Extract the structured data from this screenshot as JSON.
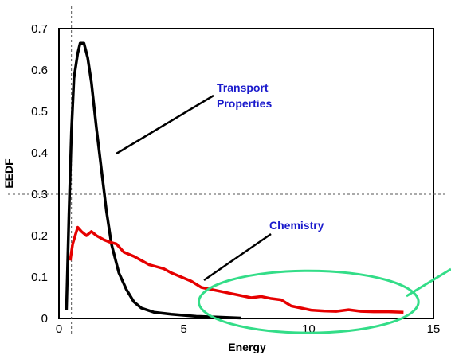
{
  "chart_data": {
    "type": "line",
    "xlabel": "Energy",
    "ylabel": "EEDF",
    "xlim": [
      0,
      15
    ],
    "ylim": [
      0,
      0.7
    ],
    "x_ticks": [
      "0",
      "5",
      "10",
      "15"
    ],
    "y_ticks": [
      "0",
      "0.1",
      "0.2",
      "0.3",
      "0.4",
      "0.5",
      "0.6",
      "0.7"
    ],
    "grid": false,
    "reference_lines": {
      "x": 0.5,
      "y": 0.3
    },
    "series": [
      {
        "color": "#000000",
        "points": [
          [
            0.3,
            0.02
          ],
          [
            0.4,
            0.25
          ],
          [
            0.5,
            0.45
          ],
          [
            0.6,
            0.58
          ],
          [
            0.75,
            0.64
          ],
          [
            0.85,
            0.665
          ],
          [
            1.0,
            0.665
          ],
          [
            1.15,
            0.63
          ],
          [
            1.3,
            0.57
          ],
          [
            1.5,
            0.46
          ],
          [
            1.7,
            0.36
          ],
          [
            1.9,
            0.26
          ],
          [
            2.1,
            0.18
          ],
          [
            2.4,
            0.11
          ],
          [
            2.7,
            0.07
          ],
          [
            3.0,
            0.04
          ],
          [
            3.3,
            0.025
          ],
          [
            3.8,
            0.015
          ],
          [
            4.5,
            0.01
          ],
          [
            5.5,
            0.005
          ],
          [
            6.5,
            0.003
          ],
          [
            7.3,
            0.001
          ]
        ]
      },
      {
        "color": "#e60000",
        "points": [
          [
            0.45,
            0.14
          ],
          [
            0.55,
            0.18
          ],
          [
            0.65,
            0.2
          ],
          [
            0.75,
            0.22
          ],
          [
            0.9,
            0.21
          ],
          [
            1.1,
            0.2
          ],
          [
            1.3,
            0.21
          ],
          [
            1.5,
            0.2
          ],
          [
            1.8,
            0.19
          ],
          [
            2.0,
            0.185
          ],
          [
            2.3,
            0.18
          ],
          [
            2.6,
            0.16
          ],
          [
            3.0,
            0.15
          ],
          [
            3.3,
            0.14
          ],
          [
            3.6,
            0.13
          ],
          [
            3.9,
            0.125
          ],
          [
            4.2,
            0.12
          ],
          [
            4.5,
            0.11
          ],
          [
            4.9,
            0.1
          ],
          [
            5.3,
            0.09
          ],
          [
            5.7,
            0.075
          ],
          [
            6.1,
            0.07
          ],
          [
            6.5,
            0.065
          ],
          [
            6.9,
            0.06
          ],
          [
            7.3,
            0.055
          ],
          [
            7.7,
            0.05
          ],
          [
            8.1,
            0.053
          ],
          [
            8.5,
            0.048
          ],
          [
            8.9,
            0.045
          ],
          [
            9.3,
            0.03
          ],
          [
            9.7,
            0.025
          ],
          [
            10.1,
            0.02
          ],
          [
            10.6,
            0.018
          ],
          [
            11.1,
            0.017
          ],
          [
            11.6,
            0.021
          ],
          [
            12.1,
            0.017
          ],
          [
            12.6,
            0.016
          ],
          [
            13.2,
            0.016
          ],
          [
            13.8,
            0.015
          ]
        ]
      }
    ],
    "annotations": [
      {
        "text": "Transport",
        "color": "#1a1acc"
      },
      {
        "text": "Properties",
        "color": "#1a1acc"
      },
      {
        "text": "Chemistry",
        "color": "#1a1acc"
      }
    ],
    "highlight": {
      "shape": "ellipse",
      "color": "#33dd88",
      "cx": 10.0,
      "cy": 0.04,
      "rx": 4.4,
      "ry": 0.075
    }
  }
}
